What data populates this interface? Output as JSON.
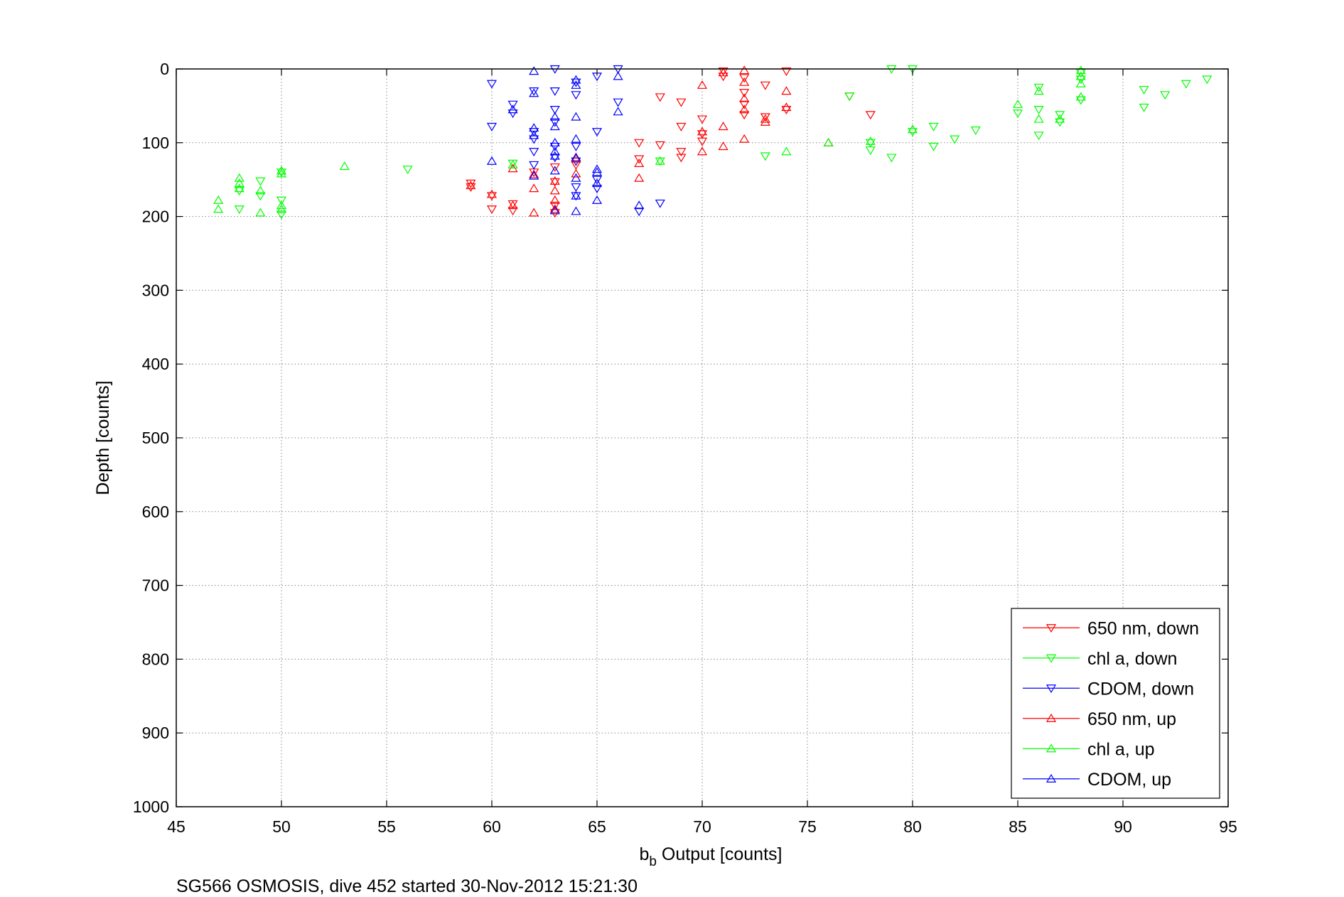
{
  "caption": "SG566 OSMOSIS, dive 452 started 30-Nov-2012 15:21:30",
  "chart_data": {
    "type": "scatter",
    "title": "",
    "xlabel_main": "b",
    "xlabel_sub": "b",
    "xlabel_rest": " Output [counts]",
    "ylabel": "Depth [counts]",
    "xlim": [
      45,
      95
    ],
    "ylim": [
      0,
      1000
    ],
    "y_reversed": true,
    "x_ticks": [
      45,
      50,
      55,
      60,
      65,
      70,
      75,
      80,
      85,
      90,
      95
    ],
    "y_ticks": [
      0,
      100,
      200,
      300,
      400,
      500,
      600,
      700,
      800,
      900,
      1000
    ],
    "grid": true,
    "legend_position": "bottom-right",
    "series": [
      {
        "name": "650 nm, down",
        "color": "#ff0000",
        "marker": "triangle-down",
        "points": [
          [
            59,
            155
          ],
          [
            59,
            160
          ],
          [
            60,
            172
          ],
          [
            60,
            190
          ],
          [
            61,
            183
          ],
          [
            61,
            192
          ],
          [
            62,
            140
          ],
          [
            63,
            153
          ],
          [
            63,
            185
          ],
          [
            63,
            195
          ],
          [
            63,
            133
          ],
          [
            64,
            130
          ],
          [
            67,
            100
          ],
          [
            67,
            122
          ],
          [
            68,
            103
          ],
          [
            68,
            38
          ],
          [
            69,
            45
          ],
          [
            69,
            78
          ],
          [
            69,
            112
          ],
          [
            69,
            120
          ],
          [
            70,
            68
          ],
          [
            70,
            88
          ],
          [
            70,
            98
          ],
          [
            71,
            3
          ],
          [
            71,
            10
          ],
          [
            72,
            12
          ],
          [
            72,
            32
          ],
          [
            72,
            48
          ],
          [
            72,
            62
          ],
          [
            73,
            22
          ],
          [
            73,
            65
          ],
          [
            74,
            3
          ],
          [
            74,
            55
          ],
          [
            77,
            37
          ],
          [
            78,
            62
          ]
        ]
      },
      {
        "name": "chl a, down",
        "color": "#00ff00",
        "marker": "triangle-down",
        "points": [
          [
            48,
            165
          ],
          [
            48,
            190
          ],
          [
            49,
            152
          ],
          [
            49,
            172
          ],
          [
            50,
            140
          ],
          [
            50,
            178
          ],
          [
            50,
            197
          ],
          [
            56,
            136
          ],
          [
            61,
            128
          ],
          [
            68,
            125
          ],
          [
            73,
            118
          ],
          [
            77,
            37
          ],
          [
            78,
            100
          ],
          [
            78,
            110
          ],
          [
            79,
            0
          ],
          [
            79,
            120
          ],
          [
            80,
            0
          ],
          [
            80,
            85
          ],
          [
            81,
            78
          ],
          [
            81,
            105
          ],
          [
            82,
            95
          ],
          [
            83,
            83
          ],
          [
            85,
            60
          ],
          [
            86,
            25
          ],
          [
            86,
            55
          ],
          [
            86,
            90
          ],
          [
            87,
            62
          ],
          [
            87,
            72
          ],
          [
            88,
            5
          ],
          [
            88,
            14
          ],
          [
            88,
            42
          ],
          [
            91,
            28
          ],
          [
            91,
            52
          ],
          [
            92,
            35
          ],
          [
            93,
            20
          ],
          [
            94,
            14
          ]
        ]
      },
      {
        "name": "CDOM, down",
        "color": "#0000ff",
        "marker": "triangle-down",
        "points": [
          [
            60,
            20
          ],
          [
            60,
            78
          ],
          [
            61,
            48
          ],
          [
            61,
            60
          ],
          [
            62,
            30
          ],
          [
            62,
            85
          ],
          [
            62,
            95
          ],
          [
            62,
            112
          ],
          [
            62,
            130
          ],
          [
            63,
            0
          ],
          [
            63,
            30
          ],
          [
            63,
            55
          ],
          [
            63,
            72
          ],
          [
            63,
            105
          ],
          [
            63,
            120
          ],
          [
            64,
            18
          ],
          [
            64,
            35
          ],
          [
            64,
            105
          ],
          [
            64,
            125
          ],
          [
            64,
            160
          ],
          [
            64,
            172
          ],
          [
            65,
            10
          ],
          [
            65,
            85
          ],
          [
            65,
            150
          ],
          [
            65,
            162
          ],
          [
            66,
            0
          ],
          [
            66,
            45
          ],
          [
            67,
            193
          ],
          [
            68,
            182
          ]
        ]
      },
      {
        "name": "650 nm, up",
        "color": "#ff0000",
        "marker": "triangle-up",
        "points": [
          [
            59,
            158
          ],
          [
            60,
            170
          ],
          [
            61,
            135
          ],
          [
            61,
            185
          ],
          [
            62,
            143
          ],
          [
            62,
            162
          ],
          [
            62,
            195
          ],
          [
            63,
            152
          ],
          [
            63,
            165
          ],
          [
            63,
            178
          ],
          [
            63,
            190
          ],
          [
            64,
            122
          ],
          [
            64,
            142
          ],
          [
            67,
            128
          ],
          [
            67,
            148
          ],
          [
            70,
            22
          ],
          [
            70,
            85
          ],
          [
            70,
            112
          ],
          [
            71,
            5
          ],
          [
            71,
            78
          ],
          [
            71,
            105
          ],
          [
            72,
            2
          ],
          [
            72,
            18
          ],
          [
            72,
            40
          ],
          [
            72,
            55
          ],
          [
            72,
            95
          ],
          [
            73,
            68
          ],
          [
            73,
            72
          ],
          [
            74,
            30
          ],
          [
            74,
            52
          ],
          [
            76,
            100
          ]
        ]
      },
      {
        "name": "chl a, up",
        "color": "#00ff00",
        "marker": "triangle-up",
        "points": [
          [
            47,
            178
          ],
          [
            47,
            190
          ],
          [
            48,
            148
          ],
          [
            48,
            155
          ],
          [
            48,
            162
          ],
          [
            49,
            165
          ],
          [
            49,
            195
          ],
          [
            50,
            138
          ],
          [
            50,
            142
          ],
          [
            50,
            185
          ],
          [
            50,
            190
          ],
          [
            53,
            132
          ],
          [
            61,
            130
          ],
          [
            68,
            125
          ],
          [
            74,
            112
          ],
          [
            76,
            100
          ],
          [
            78,
            98
          ],
          [
            80,
            82
          ],
          [
            85,
            48
          ],
          [
            86,
            30
          ],
          [
            86,
            68
          ],
          [
            87,
            68
          ],
          [
            88,
            2
          ],
          [
            88,
            10
          ],
          [
            88,
            20
          ],
          [
            88,
            38
          ]
        ]
      },
      {
        "name": "CDOM, up",
        "color": "#0000ff",
        "marker": "triangle-up",
        "points": [
          [
            60,
            125
          ],
          [
            61,
            55
          ],
          [
            62,
            3
          ],
          [
            62,
            33
          ],
          [
            62,
            80
          ],
          [
            62,
            90
          ],
          [
            62,
            145
          ],
          [
            63,
            100
          ],
          [
            63,
            118
          ],
          [
            63,
            138
          ],
          [
            63,
            192
          ],
          [
            63,
            65
          ],
          [
            64,
            15
          ],
          [
            64,
            22
          ],
          [
            64,
            65
          ],
          [
            64,
            95
          ],
          [
            64,
            120
          ],
          [
            64,
            148
          ],
          [
            64,
            172
          ],
          [
            64,
            193
          ],
          [
            65,
            136
          ],
          [
            65,
            140
          ],
          [
            65,
            155
          ],
          [
            65,
            178
          ],
          [
            66,
            58
          ],
          [
            66,
            10
          ],
          [
            67,
            185
          ],
          [
            63,
            112
          ],
          [
            63,
            78
          ]
        ]
      }
    ]
  }
}
